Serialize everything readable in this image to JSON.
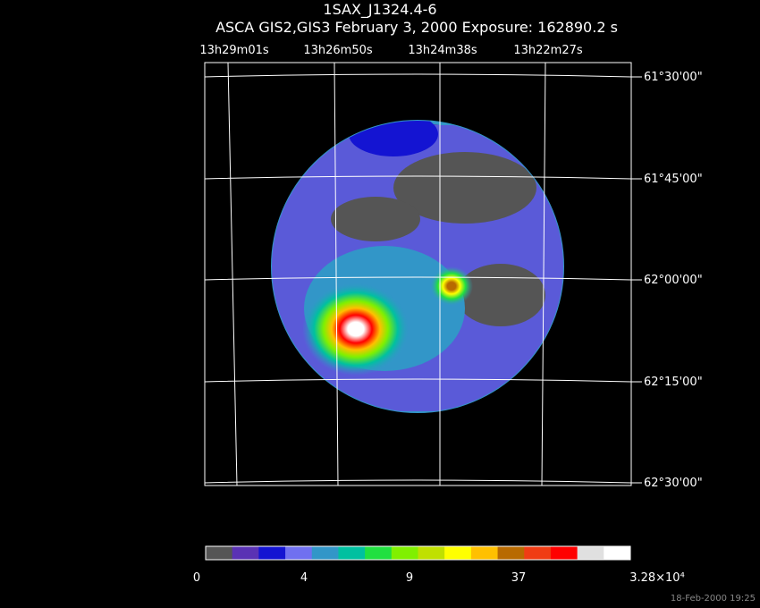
{
  "header": {
    "title": "1SAX_J1324.4-6",
    "subtitle": "ASCA GIS2,GIS3 February 3, 2000 Exposure: 162890.2 s"
  },
  "ra_labels": [
    "13h29m01s",
    "13h26m50s",
    "13h24m38s",
    "13h22m27s"
  ],
  "dec_labels": [
    "61°30'00\"",
    "61°45'00\"",
    "62°00'00\"",
    "62°15'00\"",
    "62°30'00\""
  ],
  "colorbar": {
    "colors": [
      "#555555",
      "#5a32b4",
      "#1414d2",
      "#7070f0",
      "#3296c8",
      "#00c0a0",
      "#20e040",
      "#80f000",
      "#c0e000",
      "#ffff00",
      "#ffc000",
      "#b86a00",
      "#f03c14",
      "#ff0000",
      "#e0e0e0",
      "#ffffff"
    ],
    "labels": [
      "0",
      "4",
      "9",
      "37",
      "3.28×10⁴"
    ]
  },
  "footer": {
    "timestamp": "18-Feb-2000 19:25"
  }
}
